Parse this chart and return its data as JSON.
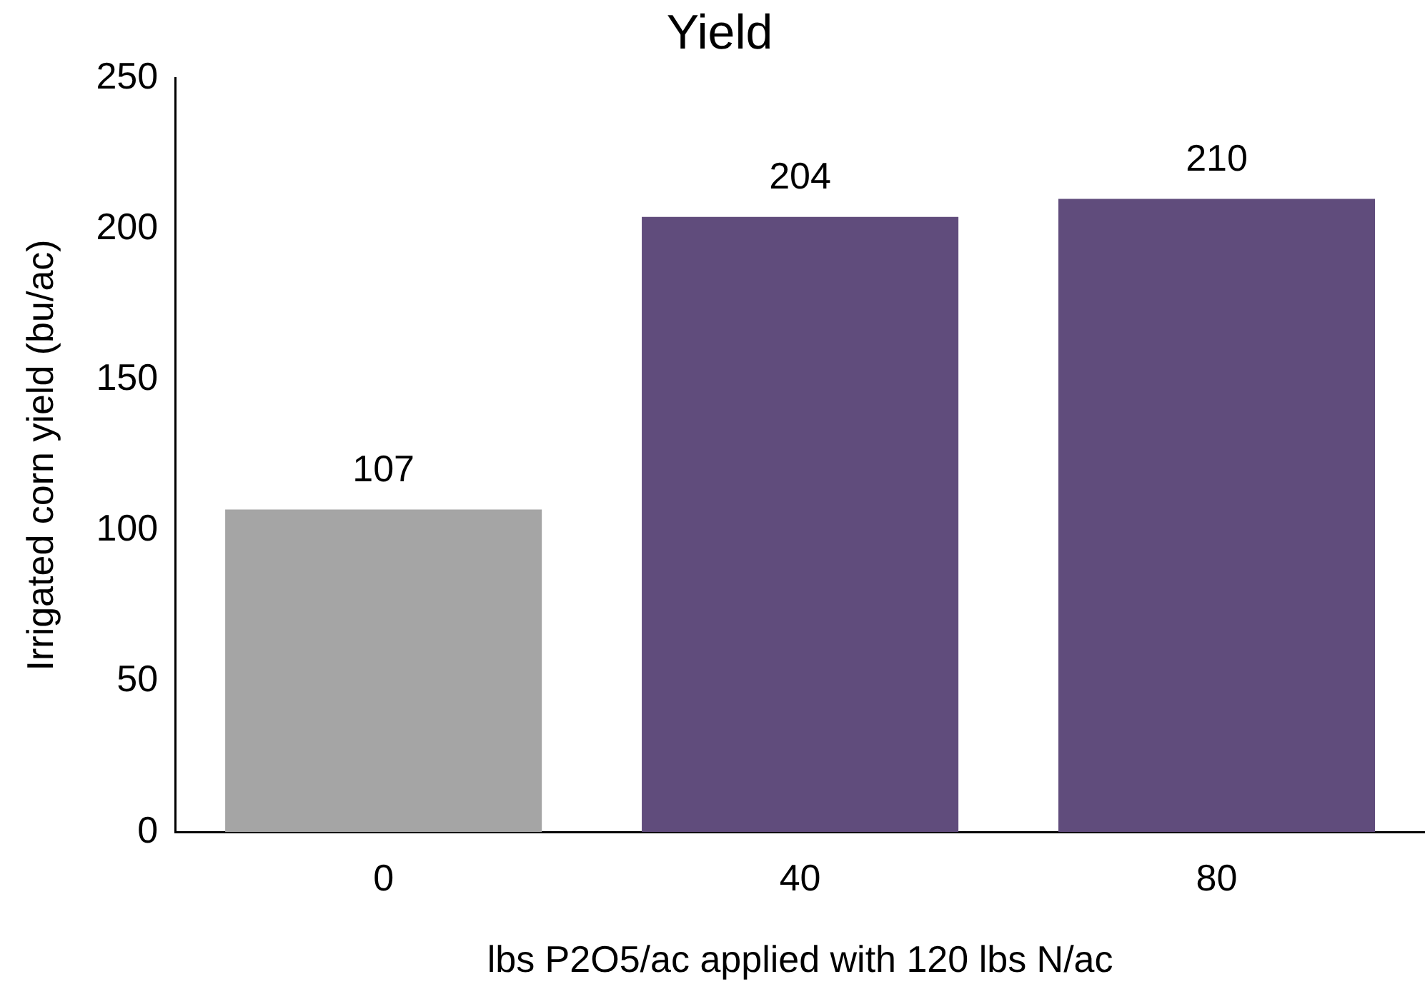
{
  "chart_data": {
    "type": "bar",
    "title": "Yield",
    "xlabel": "lbs P2O5/ac applied with 120 lbs N/ac",
    "ylabel": "Irrigated corn yield (bu/ac)",
    "categories": [
      "0",
      "40",
      "80"
    ],
    "values": [
      107,
      204,
      210
    ],
    "colors": [
      "#a5a5a5",
      "#604c7c",
      "#604c7c"
    ],
    "ylim": [
      0,
      250
    ],
    "yticks": [
      0,
      50,
      100,
      150,
      200,
      250
    ],
    "grid": false,
    "legend": false,
    "data_labels": true
  }
}
